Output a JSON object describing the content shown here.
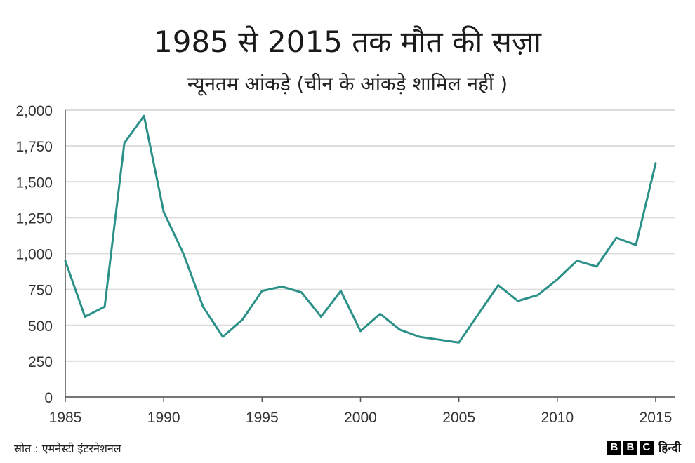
{
  "chart_data": {
    "type": "line",
    "title": "1985 से 2015 तक मौत की सज़ा",
    "subtitle": "न्यूनतम आंकड़े (चीन के आंकड़े शामिल नहीं )",
    "x": [
      1985,
      1986,
      1987,
      1988,
      1989,
      1990,
      1991,
      1992,
      1993,
      1994,
      1995,
      1996,
      1997,
      1998,
      1999,
      2000,
      2001,
      2002,
      2003,
      2004,
      2005,
      2006,
      2007,
      2008,
      2009,
      2010,
      2011,
      2012,
      2013,
      2014,
      2015
    ],
    "series": [
      {
        "name": "मौत की सज़ा",
        "values": [
          950,
          560,
          630,
          1770,
          1960,
          1290,
          1000,
          630,
          420,
          540,
          740,
          770,
          730,
          560,
          740,
          460,
          580,
          470,
          420,
          400,
          380,
          580,
          780,
          670,
          710,
          820,
          950,
          910,
          1110,
          1060,
          1630
        ]
      }
    ],
    "xlim": [
      1985,
      2016
    ],
    "ylim": [
      0,
      2000
    ],
    "xticks": [
      1985,
      1990,
      1995,
      2000,
      2005,
      2010,
      2015
    ],
    "xtick_labels": [
      "1985",
      "1990",
      "1995",
      "2000",
      "2005",
      "2010",
      "2015"
    ],
    "yticks": [
      0,
      250,
      500,
      750,
      1000,
      1250,
      1500,
      1750,
      2000
    ],
    "ytick_labels": [
      "0",
      "250",
      "500",
      "750",
      "1,000",
      "1,250",
      "1,500",
      "1,750",
      "2,000"
    ],
    "grid": true,
    "line_color": "#2a9088"
  },
  "footer": {
    "source": "स्रोत : एमनेस्टी इंटरनेशनल",
    "brand_letters": [
      "B",
      "B",
      "C"
    ],
    "brand_hindi": "हिन्दी"
  }
}
